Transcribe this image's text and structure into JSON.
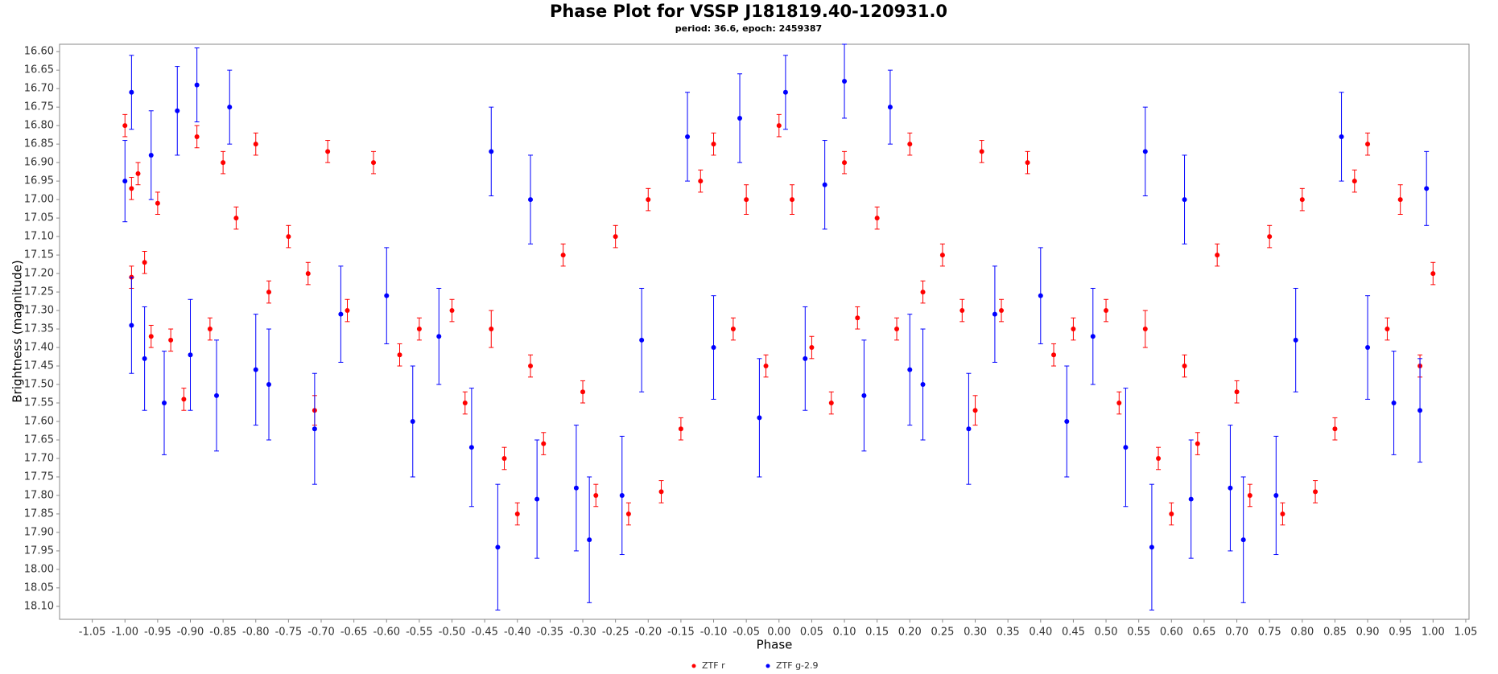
{
  "chart_data": {
    "type": "scatter",
    "title": "Phase Plot for VSSP J181819.40-120931.0",
    "subtitle": "period: 36.6, epoch: 2459387",
    "x_label": "Phase",
    "y_label": "Brightness (magnitude)",
    "xlim": [
      -1.1,
      1.055
    ],
    "ylim": [
      16.58,
      18.135
    ],
    "y_inverted": true,
    "grid": false,
    "legend": "bottom",
    "xticks": [
      -1.05,
      {
        "value": -1,
        "label": "-1.00"
      },
      -0.95,
      {
        "value": -0.9,
        "label": "-0.90"
      },
      -0.85,
      {
        "value": -0.8,
        "label": "-0.80"
      },
      -0.75,
      {
        "value": -0.7,
        "label": "-0.70"
      },
      -0.65,
      {
        "value": -0.6,
        "label": "-0.60"
      },
      -0.55,
      {
        "value": -0.5,
        "label": "-0.50"
      },
      -0.45,
      {
        "value": -0.4,
        "label": "-0.40"
      },
      -0.35,
      {
        "value": -0.3,
        "label": "-0.30"
      },
      -0.25,
      {
        "value": -0.2,
        "label": "-0.20"
      },
      -0.15,
      {
        "value": -0.1,
        "label": "-0.10"
      },
      -0.05,
      {
        "value": 0,
        "label": "0.00"
      },
      0.05,
      {
        "value": 0.1,
        "label": "0.10"
      },
      0.15,
      {
        "value": 0.2,
        "label": "0.20"
      },
      0.25,
      {
        "value": 0.3,
        "label": "0.30"
      },
      0.35,
      {
        "value": 0.4,
        "label": "0.40"
      },
      0.45,
      {
        "value": 0.5,
        "label": "0.50"
      },
      0.55,
      {
        "value": 0.6,
        "label": "0.60"
      },
      0.65,
      {
        "value": 0.7,
        "label": "0.70"
      },
      0.75,
      {
        "value": 0.8,
        "label": "0.80"
      },
      0.85,
      {
        "value": 0.9,
        "label": "0.90"
      },
      0.95,
      {
        "value": 1,
        "label": "1.00"
      },
      1.05
    ],
    "yticks": [
      {
        "value": 16.6,
        "label": "16.60"
      },
      16.65,
      {
        "value": 16.7,
        "label": "16.70"
      },
      16.75,
      {
        "value": 16.8,
        "label": "16.80"
      },
      16.85,
      {
        "value": 16.9,
        "label": "16.90"
      },
      16.95,
      {
        "value": 17,
        "label": "17.00"
      },
      17.05,
      {
        "value": 17.1,
        "label": "17.10"
      },
      17.15,
      {
        "value": 17.2,
        "label": "17.20"
      },
      17.25,
      {
        "value": 17.3,
        "label": "17.30"
      },
      17.35,
      {
        "value": 17.4,
        "label": "17.40"
      },
      17.45,
      {
        "value": 17.5,
        "label": "17.50"
      },
      17.55,
      {
        "value": 17.6,
        "label": "17.60"
      },
      17.65,
      {
        "value": 17.7,
        "label": "17.70"
      },
      17.75,
      {
        "value": 17.8,
        "label": "17.80"
      },
      17.85,
      {
        "value": 17.9,
        "label": "17.90"
      },
      17.95,
      {
        "value": 18,
        "label": "18.00"
      },
      18.05,
      {
        "value": 18.1,
        "label": "18.10"
      }
    ],
    "series": [
      {
        "name": "ZTF r",
        "color": "#ff0000",
        "x": [
          -1.0,
          -0.99,
          -0.99,
          -0.98,
          -0.97,
          -0.96,
          -0.95,
          -0.93,
          -0.91,
          -0.89,
          -0.87,
          -0.85,
          -0.83,
          -0.8,
          -0.78,
          -0.75,
          -0.72,
          -0.71,
          -0.69,
          -0.66,
          -0.62,
          -0.58,
          -0.55,
          -0.5,
          -0.48,
          -0.44,
          -0.42,
          -0.4,
          -0.38,
          -0.36,
          -0.33,
          -0.3,
          -0.28,
          -0.25,
          -0.23,
          -0.2,
          -0.18,
          -0.15,
          -0.12,
          -0.1,
          -0.07,
          -0.05,
          -0.02,
          0.0,
          0.02,
          0.05,
          0.08,
          0.1,
          0.12,
          0.15,
          0.18,
          0.2,
          0.22,
          0.25,
          0.28,
          0.3,
          0.31,
          0.34,
          0.38,
          0.42,
          0.45,
          0.5,
          0.52,
          0.56,
          0.58,
          0.6,
          0.62,
          0.64,
          0.67,
          0.7,
          0.72,
          0.75,
          0.77,
          0.8,
          0.82,
          0.85,
          0.88,
          0.9,
          0.93,
          0.95,
          0.98,
          1.0
        ],
        "values": [
          16.8,
          16.97,
          17.21,
          16.93,
          17.17,
          17.37,
          17.01,
          17.38,
          17.54,
          16.83,
          17.35,
          16.9,
          17.05,
          16.85,
          17.25,
          17.1,
          17.2,
          17.57,
          16.87,
          17.3,
          16.9,
          17.42,
          17.35,
          17.3,
          17.55,
          17.35,
          17.7,
          17.85,
          17.45,
          17.66,
          17.15,
          17.52,
          17.8,
          17.1,
          17.85,
          17.0,
          17.79,
          17.62,
          16.95,
          16.85,
          17.35,
          17.0,
          17.45,
          16.8,
          17.0,
          17.4,
          17.55,
          16.9,
          17.32,
          17.05,
          17.35,
          16.85,
          17.25,
          17.15,
          17.3,
          17.57,
          16.87,
          17.3,
          16.9,
          17.42,
          17.35,
          17.3,
          17.55,
          17.35,
          17.7,
          17.85,
          17.45,
          17.66,
          17.15,
          17.52,
          17.8,
          17.1,
          17.85,
          17.0,
          17.79,
          17.62,
          16.95,
          16.85,
          17.35,
          17.0,
          17.45,
          17.2
        ],
        "errors": [
          0.03,
          0.03,
          0.03,
          0.03,
          0.03,
          0.03,
          0.03,
          0.03,
          0.03,
          0.03,
          0.03,
          0.03,
          0.03,
          0.03,
          0.03,
          0.03,
          0.03,
          0.04,
          0.03,
          0.03,
          0.03,
          0.03,
          0.03,
          0.03,
          0.03,
          0.05,
          0.03,
          0.03,
          0.03,
          0.03,
          0.03,
          0.03,
          0.03,
          0.03,
          0.03,
          0.03,
          0.03,
          0.03,
          0.03,
          0.03,
          0.03,
          0.04,
          0.03,
          0.03,
          0.04,
          0.03,
          0.03,
          0.03,
          0.03,
          0.03,
          0.03,
          0.03,
          0.03,
          0.03,
          0.03,
          0.04,
          0.03,
          0.03,
          0.03,
          0.03,
          0.03,
          0.03,
          0.03,
          0.05,
          0.03,
          0.03,
          0.03,
          0.03,
          0.03,
          0.03,
          0.03,
          0.03,
          0.03,
          0.03,
          0.03,
          0.03,
          0.03,
          0.03,
          0.03,
          0.04,
          0.03,
          0.03
        ]
      },
      {
        "name": "ZTF g-2.9",
        "color": "#0000ff",
        "x": [
          -1.0,
          -0.99,
          -0.99,
          -0.97,
          -0.96,
          -0.94,
          -0.92,
          -0.9,
          -0.89,
          -0.86,
          -0.84,
          -0.8,
          -0.78,
          -0.71,
          -0.67,
          -0.6,
          -0.56,
          -0.52,
          -0.47,
          -0.44,
          -0.43,
          -0.38,
          -0.37,
          -0.31,
          -0.29,
          -0.24,
          -0.21,
          -0.14,
          -0.1,
          -0.06,
          -0.03,
          0.01,
          0.04,
          0.07,
          0.1,
          0.13,
          0.17,
          0.2,
          0.22,
          0.29,
          0.33,
          0.4,
          0.44,
          0.48,
          0.53,
          0.56,
          0.57,
          0.62,
          0.63,
          0.69,
          0.71,
          0.76,
          0.79,
          0.86,
          0.9,
          0.94,
          0.98,
          0.99
        ],
        "values": [
          16.95,
          16.71,
          17.34,
          17.43,
          16.88,
          17.55,
          16.76,
          17.42,
          16.69,
          17.53,
          16.75,
          17.46,
          17.5,
          17.62,
          17.31,
          17.26,
          17.6,
          17.37,
          17.67,
          16.87,
          17.94,
          17.0,
          17.81,
          17.78,
          17.92,
          17.8,
          17.38,
          16.83,
          17.4,
          16.78,
          17.59,
          16.71,
          17.43,
          16.96,
          16.68,
          17.53,
          16.75,
          17.46,
          17.5,
          17.62,
          17.31,
          17.26,
          17.6,
          17.37,
          17.67,
          16.87,
          17.94,
          17.0,
          17.81,
          17.78,
          17.92,
          17.8,
          17.38,
          16.83,
          17.4,
          17.55,
          17.57,
          16.97
        ],
        "errors": [
          0.11,
          0.1,
          0.13,
          0.14,
          0.12,
          0.14,
          0.12,
          0.15,
          0.1,
          0.15,
          0.1,
          0.15,
          0.15,
          0.15,
          0.13,
          0.13,
          0.15,
          0.13,
          0.16,
          0.12,
          0.17,
          0.12,
          0.16,
          0.17,
          0.17,
          0.16,
          0.14,
          0.12,
          0.14,
          0.12,
          0.16,
          0.1,
          0.14,
          0.12,
          0.1,
          0.15,
          0.1,
          0.15,
          0.15,
          0.15,
          0.13,
          0.13,
          0.15,
          0.13,
          0.16,
          0.12,
          0.17,
          0.12,
          0.16,
          0.17,
          0.17,
          0.16,
          0.14,
          0.12,
          0.14,
          0.14,
          0.14,
          0.1
        ]
      }
    ]
  }
}
